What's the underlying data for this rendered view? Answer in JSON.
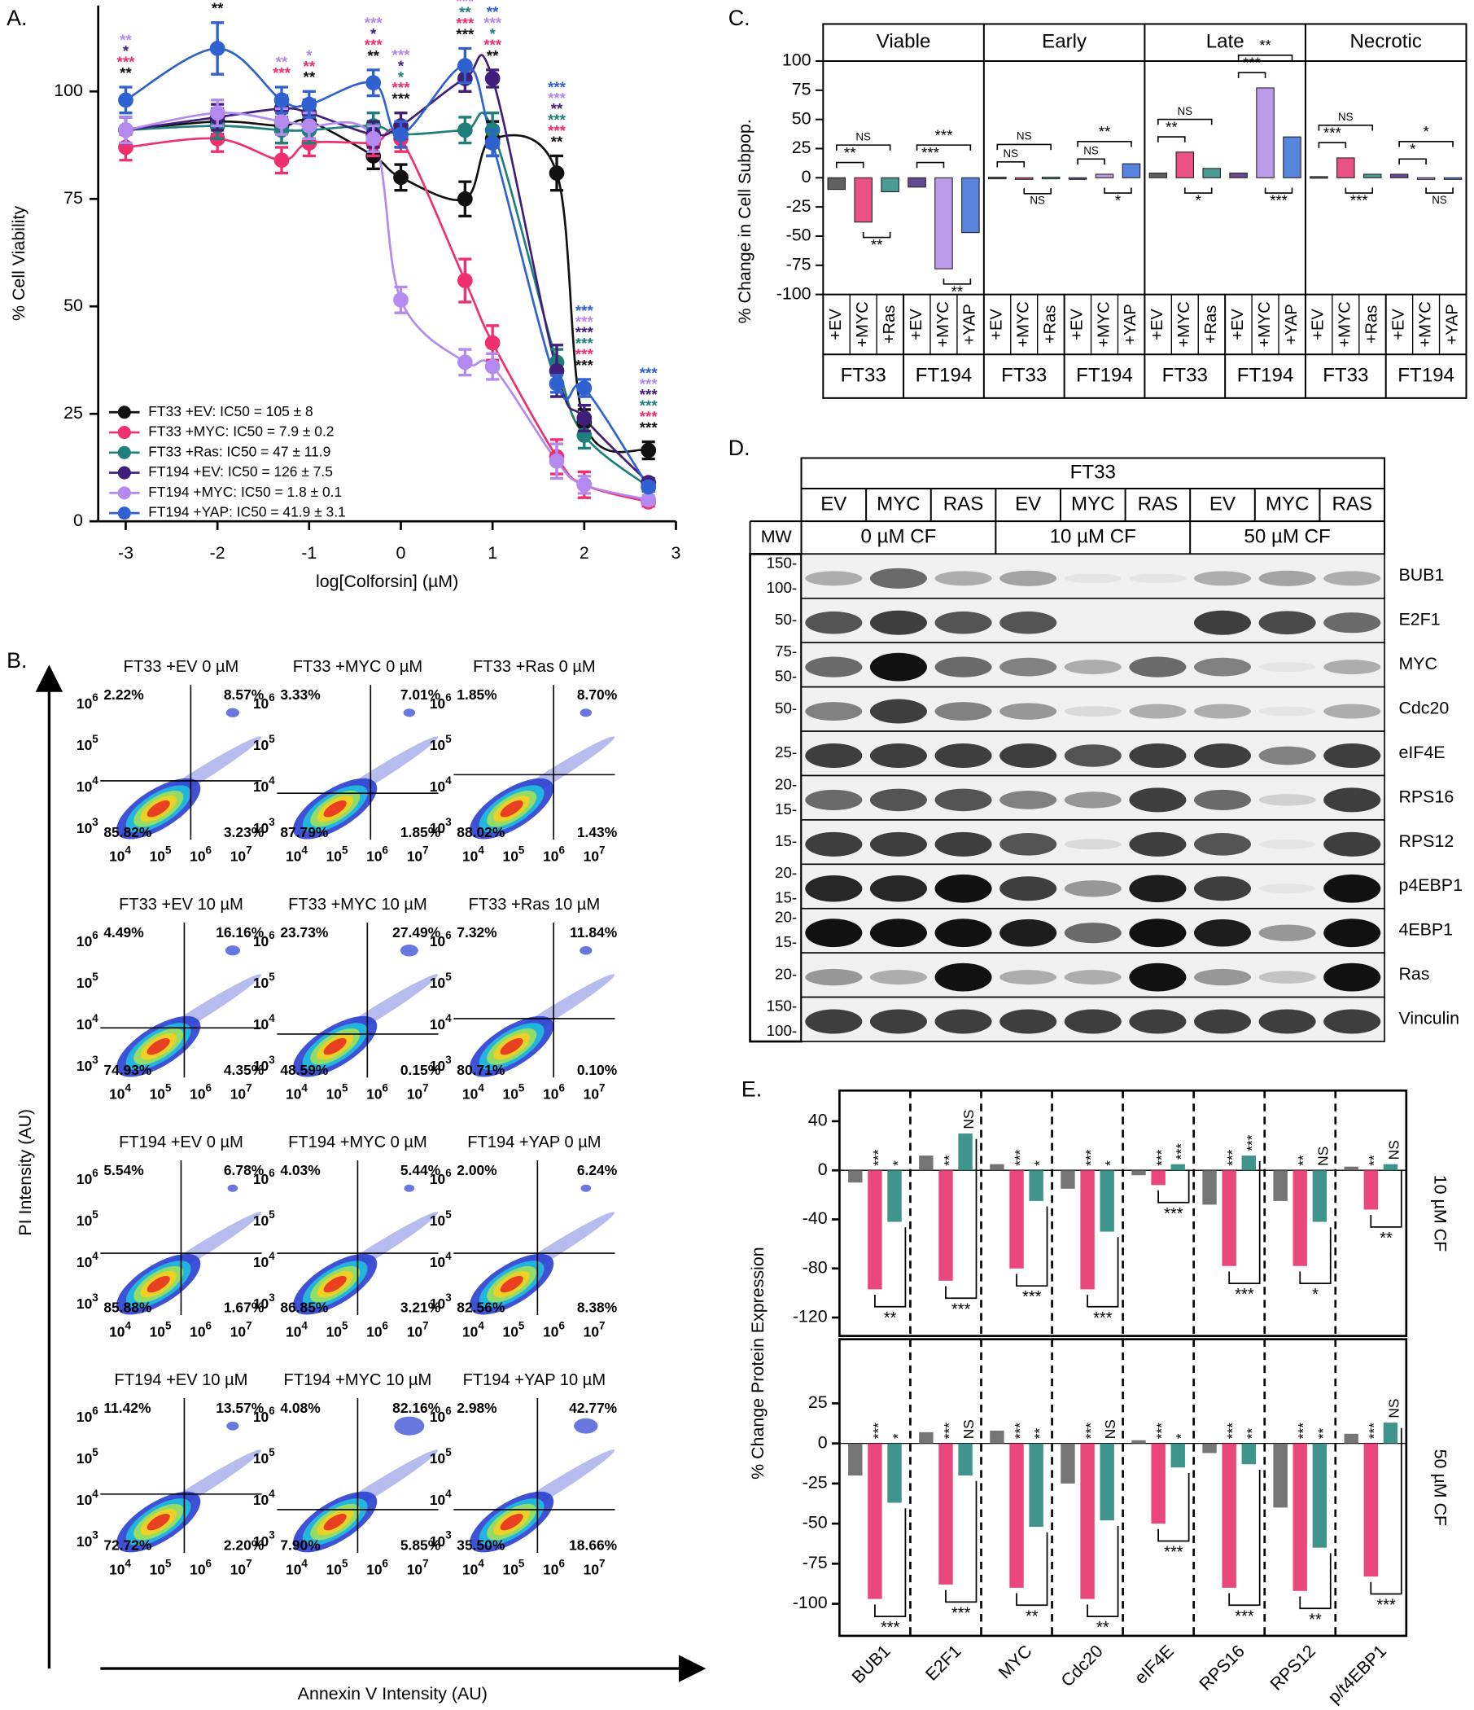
{
  "panel_labels": [
    "A.",
    "B.",
    "C.",
    "D.",
    "E."
  ],
  "chart_data": [
    {
      "type": "line",
      "xlabel": "log[Colforsin] (µM)",
      "ylabel": "% Cell Viability",
      "xlim": [
        -3.3,
        3
      ],
      "ylim": [
        0,
        120
      ],
      "xticks": [
        -3,
        -2,
        -1,
        0,
        1,
        2,
        3
      ],
      "yticks": [
        0,
        25,
        50,
        75,
        100
      ],
      "x": [
        -3,
        -2,
        -1.3,
        -1,
        -0.3,
        0,
        0.7,
        1,
        1.7,
        2,
        2.7
      ],
      "series": [
        {
          "name": "FT33 +EV: IC50 = 105 ± 8",
          "color": "#111111",
          "values": [
            91,
            93,
            92,
            93,
            85,
            80,
            75,
            89,
            81,
            23,
            16.5
          ],
          "errors": [
            3,
            3,
            4,
            4,
            3,
            3,
            4,
            4,
            4,
            3,
            2
          ],
          "stars": [
            "**",
            "**",
            null,
            "**",
            "**",
            "***",
            "***",
            "**",
            "**",
            "***",
            "***"
          ]
        },
        {
          "name": "FT33 +MYC: IC50 = 7.9 ± 0.2",
          "color": "#ef2f6e",
          "values": [
            87,
            89,
            84,
            88,
            88,
            89,
            56,
            41.5,
            15,
            8.5,
            4.5
          ],
          "errors": [
            3,
            3,
            3,
            3,
            3,
            3,
            5,
            4,
            4,
            3,
            1
          ],
          "stars": [
            "***",
            "***",
            "***",
            "**",
            "***",
            "***",
            "***",
            "***",
            "***",
            "***",
            "***"
          ]
        },
        {
          "name": "FT33 +Ras: IC50 = 47 ± 11.9",
          "color": "#1f7f7a",
          "values": [
            91,
            92,
            91,
            91,
            92,
            90,
            91,
            91,
            37,
            20,
            8
          ],
          "errors": [
            3,
            3,
            3,
            3,
            3,
            3,
            3,
            4,
            3,
            3,
            1
          ],
          "stars": [
            null,
            null,
            null,
            null,
            null,
            "*",
            "**",
            "*",
            "***",
            "***",
            "***"
          ]
        },
        {
          "name": "FT194 +EV: IC50 = 126 ± 7.5",
          "color": "#3f1f7a",
          "values": [
            91,
            94,
            96,
            95,
            90,
            92,
            103,
            103,
            35,
            24,
            9
          ],
          "errors": [
            3,
            3,
            3,
            3,
            3,
            3,
            3,
            2,
            6,
            3,
            1
          ],
          "stars": [
            "*",
            null,
            null,
            null,
            "*",
            "*",
            null,
            null,
            "**",
            "***",
            "***"
          ]
        },
        {
          "name": "FT194 +MYC: IC50 = 1.8 ± 0.1",
          "color": "#b38af0",
          "values": [
            91,
            95,
            93,
            92,
            89,
            51.5,
            37,
            36,
            14,
            8.5,
            5
          ],
          "errors": [
            3,
            3,
            3,
            3,
            3,
            3,
            3,
            3,
            4,
            2,
            1
          ],
          "stars": [
            "**",
            null,
            "**",
            "*",
            "***",
            "***",
            "***",
            "***",
            "***",
            "***",
            "***"
          ]
        },
        {
          "name": "FT194 +YAP: IC50 = 41.9 ± 3.1",
          "color": "#2f62d0",
          "values": [
            98,
            110,
            98,
            97,
            102,
            90,
            106,
            88,
            32,
            31,
            8
          ],
          "errors": [
            3,
            6,
            3,
            3,
            3,
            3,
            4,
            3,
            2,
            2,
            1
          ],
          "stars": [
            null,
            null,
            null,
            null,
            null,
            null,
            null,
            "**",
            "***",
            "***",
            "***"
          ]
        }
      ]
    },
    {
      "type": "bar",
      "ylabel": "% Change in Cell Subpop.",
      "ylim": [
        -100,
        100
      ],
      "yticks": [
        -100,
        -75,
        -50,
        -25,
        0,
        25,
        50,
        75,
        100
      ],
      "facets": [
        {
          "name": "Viable",
          "groups": [
            {
              "name": "FT33",
              "categories": [
                "+EV",
                "+MYC",
                "+Ras"
              ],
              "values": [
                -10,
                -38,
                -12
              ],
              "colors": [
                "#444444",
                "#e8336e",
                "#2a8a80"
              ],
              "sig": [
                "**",
                "NS",
                "**"
              ]
            },
            {
              "name": "FT194",
              "categories": [
                "+EV",
                "+MYC",
                "+YAP"
              ],
              "values": [
                -8,
                -78,
                -47
              ],
              "colors": [
                "#4b2a80",
                "#b08ae6",
                "#3c6fd8"
              ],
              "sig": [
                "***",
                "***",
                "**"
              ]
            }
          ]
        },
        {
          "name": "Early",
          "groups": [
            {
              "name": "FT33",
              "categories": [
                "+EV",
                "+MYC",
                "+Ras"
              ],
              "values": [
                0.5,
                -0.5,
                0.5
              ],
              "colors": [
                "#444444",
                "#e8336e",
                "#2a8a80"
              ],
              "sig": [
                "NS",
                "NS",
                "NS"
              ]
            },
            {
              "name": "FT194",
              "categories": [
                "+EV",
                "+MYC",
                "+YAP"
              ],
              "values": [
                -0.5,
                3,
                12
              ],
              "colors": [
                "#4b2a80",
                "#b08ae6",
                "#3c6fd8"
              ],
              "sig": [
                "NS",
                "**",
                "*"
              ]
            }
          ]
        },
        {
          "name": "Late",
          "groups": [
            {
              "name": "FT33",
              "categories": [
                "+EV",
                "+MYC",
                "+Ras"
              ],
              "values": [
                4,
                22,
                8
              ],
              "colors": [
                "#444444",
                "#e8336e",
                "#2a8a80"
              ],
              "sig": [
                "**",
                "NS",
                "*"
              ]
            },
            {
              "name": "FT194",
              "categories": [
                "+EV",
                "+MYC",
                "+YAP"
              ],
              "values": [
                4,
                77,
                35
              ],
              "colors": [
                "#4b2a80",
                "#b08ae6",
                "#3c6fd8"
              ],
              "sig": [
                "***",
                "**",
                "***"
              ]
            }
          ]
        },
        {
          "name": "Necrotic",
          "groups": [
            {
              "name": "FT33",
              "categories": [
                "+EV",
                "+MYC",
                "+Ras"
              ],
              "values": [
                1,
                17,
                3
              ],
              "colors": [
                "#444444",
                "#e8336e",
                "#2a8a80"
              ],
              "sig": [
                "***",
                "NS",
                "***"
              ]
            },
            {
              "name": "FT194",
              "categories": [
                "+EV",
                "+MYC",
                "+YAP"
              ],
              "values": [
                3,
                0,
                0
              ],
              "colors": [
                "#4b2a80",
                "#b08ae6",
                "#3c6fd8"
              ],
              "sig": [
                "*",
                "*",
                "NS"
              ]
            }
          ]
        }
      ]
    },
    {
      "type": "bar",
      "ylabel": "% Change Protein Expression",
      "categories": [
        "BUB1",
        "E2F1",
        "MYC",
        "Cdc20",
        "eIF4E",
        "RPS16",
        "RPS12",
        "p/t4EBP1"
      ],
      "panels": [
        {
          "label": "10 µM CF",
          "ylim": [
            -135,
            65
          ],
          "yticks": [
            -120,
            -80,
            -40,
            0,
            40
          ],
          "series": [
            {
              "color": "#666666",
              "values": [
                -10,
                12,
                5,
                -15,
                -4,
                -28,
                -25,
                3
              ]
            },
            {
              "color": "#e8336e",
              "values": [
                -97,
                -90,
                -80,
                -97,
                -12,
                -78,
                -78,
                -32
              ]
            },
            {
              "color": "#2a8a80",
              "values": [
                -42,
                30,
                -25,
                -50,
                5,
                12,
                -42,
                5
              ]
            }
          ],
          "sig": [
            [
              "***",
              "*",
              "**"
            ],
            [
              "**",
              "NS",
              "***"
            ],
            [
              "***",
              "*",
              "***"
            ],
            [
              "***",
              "*",
              "***"
            ],
            [
              "***",
              "***",
              "***"
            ],
            [
              "***",
              "***",
              "***"
            ],
            [
              "**",
              "NS",
              "*"
            ],
            [
              "**",
              "NS",
              "**"
            ]
          ]
        },
        {
          "label": "50 µM CF",
          "ylim": [
            -120,
            65
          ],
          "yticks": [
            -100,
            -75,
            -50,
            -25,
            0,
            25
          ],
          "series": [
            {
              "color": "#666666",
              "values": [
                -20,
                7,
                8,
                -25,
                2,
                -6,
                -40,
                6
              ]
            },
            {
              "color": "#e8336e",
              "values": [
                -97,
                -88,
                -90,
                -97,
                -50,
                -90,
                -92,
                -83
              ]
            },
            {
              "color": "#2a8a80",
              "values": [
                -37,
                -20,
                -52,
                -48,
                -15,
                -13,
                -65,
                13
              ]
            }
          ],
          "sig": [
            [
              "***",
              "*",
              "***"
            ],
            [
              "***",
              "NS",
              "***"
            ],
            [
              "***",
              "**",
              "**"
            ],
            [
              "***",
              "NS",
              "**"
            ],
            [
              "***",
              "*",
              "***"
            ],
            [
              "***",
              "**",
              "***"
            ],
            [
              "***",
              "**",
              "**"
            ],
            [
              "***",
              "NS",
              "***"
            ]
          ]
        }
      ]
    }
  ],
  "flow": {
    "y_label": "PI Intensity (AU)",
    "x_label": "Annexin V Intensity (AU)",
    "base": "10",
    "x_exponents": [
      "4",
      "5",
      "6",
      "7"
    ],
    "y_exponents": [
      "3",
      "4",
      "5",
      "6"
    ],
    "plots": [
      {
        "title": "FT33 +EV 0 µM",
        "quadrants": [
          "2.22%",
          "8.57%",
          "85.82%",
          "3.23%"
        ]
      },
      {
        "title": "FT33 +MYC 0 µM",
        "quadrants": [
          "3.33%",
          "7.01%",
          "87.79%",
          "1.85%"
        ]
      },
      {
        "title": "FT33 +Ras 0 µM",
        "quadrants": [
          "1.85%",
          "8.70%",
          "88.02%",
          "1.43%"
        ]
      },
      {
        "title": "FT33 +EV 10 µM",
        "quadrants": [
          "4.49%",
          "16.16%",
          "74.93%",
          "4.35%"
        ]
      },
      {
        "title": "FT33 +MYC 10 µM",
        "quadrants": [
          "23.73%",
          "27.49%",
          "48.59%",
          "0.15%"
        ]
      },
      {
        "title": "FT33 +Ras 10 µM",
        "quadrants": [
          "7.32%",
          "11.84%",
          "80.71%",
          "0.10%"
        ]
      },
      {
        "title": "FT194 +EV 0 µM",
        "quadrants": [
          "5.54%",
          "6.78%",
          "85.88%",
          "1.67%"
        ]
      },
      {
        "title": "FT194 +MYC 0 µM",
        "quadrants": [
          "4.03%",
          "5.44%",
          "86.85%",
          "3.21%"
        ]
      },
      {
        "title": "FT194 +YAP 0 µM",
        "quadrants": [
          "2.00%",
          "6.24%",
          "82.56%",
          "8.38%"
        ]
      },
      {
        "title": "FT194 +EV 10 µM",
        "quadrants": [
          "11.42%",
          "13.57%",
          "72.72%",
          "2.20%"
        ]
      },
      {
        "title": "FT194 +MYC 10 µM",
        "quadrants": [
          "4.08%",
          "82.16%",
          "7.90%",
          "5.85%"
        ]
      },
      {
        "title": "FT194 +YAP 10 µM",
        "quadrants": [
          "2.98%",
          "42.77%",
          "35.50%",
          "18.66%"
        ]
      }
    ]
  },
  "blot": {
    "header": "FT33",
    "mw_title": "MW",
    "lanes": [
      "EV",
      "MYC",
      "RAS",
      "EV",
      "MYC",
      "RAS",
      "EV",
      "MYC",
      "RAS"
    ],
    "conditions": [
      "0 µM CF",
      "10 µM CF",
      "50 µM CF"
    ],
    "rows": [
      {
        "protein": "BUB1",
        "mw": [
          "150-",
          "100-"
        ]
      },
      {
        "protein": "E2F1",
        "mw": [
          "50-"
        ]
      },
      {
        "protein": "MYC",
        "mw": [
          "75-",
          "50-"
        ]
      },
      {
        "protein": "Cdc20",
        "mw": [
          "50-"
        ]
      },
      {
        "protein": "eIF4E",
        "mw": [
          "25-"
        ]
      },
      {
        "protein": "RPS16",
        "mw": [
          "20-",
          "15-"
        ]
      },
      {
        "protein": "RPS12",
        "mw": [
          "15-"
        ]
      },
      {
        "protein": "p4EBP1",
        "mw": [
          "20-",
          "15-"
        ]
      },
      {
        "protein": "4EBP1",
        "mw": [
          "20-",
          "15-"
        ]
      },
      {
        "protein": "Ras",
        "mw": [
          "20-"
        ]
      },
      {
        "protein": "Vinculin",
        "mw": [
          "150-",
          "100-"
        ]
      }
    ]
  }
}
